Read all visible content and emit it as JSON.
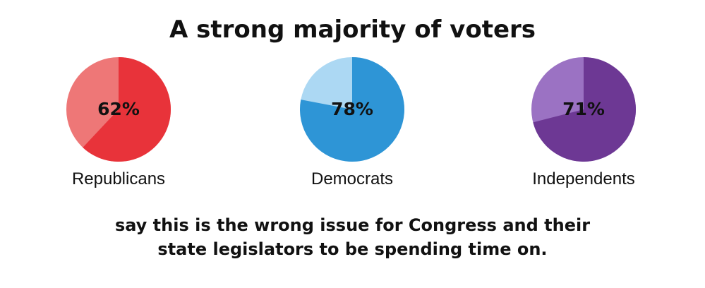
{
  "chart_data": {
    "type": "pie",
    "title": "A strong majority of voters",
    "caption_lines": [
      "say this is the wrong issue for Congress and their",
      "state legislators to be spending time on."
    ],
    "pies": [
      {
        "label": "Republicans",
        "value": 62,
        "value_label": "62%",
        "color_main": "#e8333a",
        "color_rest": "#ee7777"
      },
      {
        "label": "Democrats",
        "value": 78,
        "value_label": "78%",
        "color_main": "#2e95d6",
        "color_rest": "#acd8f3"
      },
      {
        "label": "Independents",
        "value": 71,
        "value_label": "71%",
        "color_main": "#6d3894",
        "color_rest": "#9b72c3"
      }
    ]
  }
}
